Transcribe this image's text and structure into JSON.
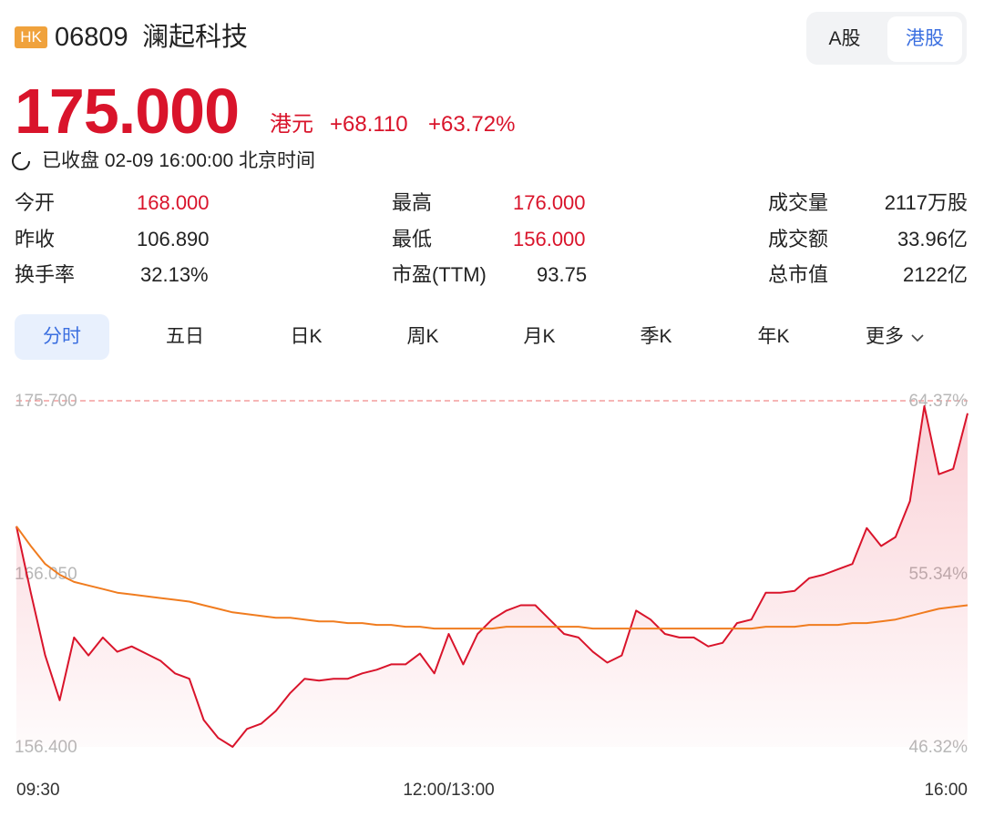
{
  "header": {
    "badge": "HK",
    "code": "06809",
    "name": "澜起科技",
    "toggle": [
      "A股",
      "港股"
    ]
  },
  "quote": {
    "price": "175.000",
    "unit": "港元",
    "change": "+68.110",
    "change_pct": "+63.72%",
    "status": "已收盘 02-09 16:00:00 北京时间"
  },
  "stats": [
    {
      "label": "今开",
      "value": "168.000"
    },
    {
      "label": "最高",
      "value": "176.000"
    },
    {
      "label": "成交量",
      "value": "2117万股"
    },
    {
      "label": "昨收",
      "value": "106.890"
    },
    {
      "label": "最低",
      "value": "156.000"
    },
    {
      "label": "成交额",
      "value": "33.96亿"
    },
    {
      "label": "换手率",
      "value": "32.13%"
    },
    {
      "label": "市盈(TTM)",
      "value": "93.75"
    },
    {
      "label": "总市值",
      "value": "2122亿"
    }
  ],
  "tabs": [
    "分时",
    "五日",
    "日K",
    "周K",
    "月K",
    "季K",
    "年K",
    "更多"
  ],
  "chart_data": {
    "type": "line",
    "xlim": [
      0,
      66
    ],
    "xticks": [
      {
        "value": 0,
        "label": "09:30"
      },
      {
        "value": 30,
        "label": "12:00/13:00"
      },
      {
        "value": 66,
        "label": "16:00"
      }
    ],
    "ylim": [
      156.4,
      175.7
    ],
    "yticks": [
      {
        "value": 175.7,
        "label": "175.700"
      },
      {
        "value": 166.05,
        "label": "166.050"
      },
      {
        "value": 156.4,
        "label": "156.400"
      }
    ],
    "y2lim": [
      46.32,
      64.37
    ],
    "y2ticks": [
      {
        "value": 64.37,
        "label": "64.37%"
      },
      {
        "value": 55.34,
        "label": "55.34%"
      },
      {
        "value": 46.32,
        "label": "46.32%"
      }
    ],
    "series": [
      {
        "color": "#d9142b",
        "values": [
          168.7,
          165.0,
          161.5,
          159.0,
          162.5,
          161.5,
          162.5,
          161.7,
          162.0,
          161.6,
          161.2,
          160.5,
          160.2,
          157.9,
          156.9,
          156.4,
          157.4,
          157.7,
          158.4,
          159.4,
          160.2,
          160.1,
          160.2,
          160.2,
          160.5,
          160.7,
          161.0,
          161.0,
          161.6,
          160.5,
          162.7,
          161.0,
          162.7,
          163.5,
          164.0,
          164.3,
          164.3,
          163.5,
          162.7,
          162.5,
          161.7,
          161.1,
          161.5,
          164.0,
          163.5,
          162.7,
          162.5,
          162.5,
          162.0,
          162.2,
          163.3,
          163.5,
          165.0,
          165.0,
          165.1,
          165.8,
          166.0,
          166.3,
          166.6,
          168.6,
          167.6,
          168.1,
          170.1,
          175.4,
          171.6,
          171.9,
          175.0
        ]
      },
      {
        "color": "#f07c1f",
        "values": [
          168.7,
          167.6,
          166.6,
          166.0,
          165.6,
          165.4,
          165.2,
          165.0,
          164.9,
          164.8,
          164.7,
          164.6,
          164.5,
          164.3,
          164.1,
          163.9,
          163.8,
          163.7,
          163.6,
          163.6,
          163.5,
          163.4,
          163.4,
          163.3,
          163.3,
          163.2,
          163.2,
          163.1,
          163.1,
          163.0,
          163.0,
          163.0,
          163.0,
          163.0,
          163.1,
          163.1,
          163.1,
          163.1,
          163.1,
          163.1,
          163.0,
          163.0,
          163.0,
          163.0,
          163.0,
          163.0,
          163.0,
          163.0,
          163.0,
          163.0,
          163.0,
          163.0,
          163.1,
          163.1,
          163.1,
          163.2,
          163.2,
          163.2,
          163.3,
          163.3,
          163.4,
          163.5,
          163.7,
          163.9,
          164.1,
          164.2,
          164.3
        ]
      }
    ]
  }
}
